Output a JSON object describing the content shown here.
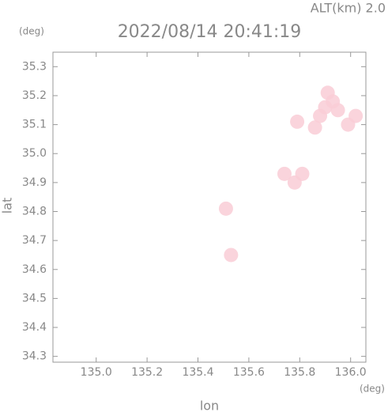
{
  "chart_data": {
    "type": "scatter",
    "title": "2022/08/14 20:41:19",
    "subtitle": "ALT(km) 2.0",
    "y_unit": "(deg)",
    "x_unit": "(deg)",
    "x_label": "lon",
    "y_label": "lat",
    "xlim": [
      134.83,
      136.06
    ],
    "ylim": [
      34.28,
      35.35
    ],
    "xticks": [
      {
        "value": 135.0,
        "label": "135.0"
      },
      135.2,
      135.4,
      135.6,
      135.8,
      {
        "value": 136.0,
        "label": "136.0"
      }
    ],
    "yticks": [
      34.3,
      34.4,
      34.5,
      34.6,
      34.7,
      34.8,
      34.9,
      {
        "value": 35.0,
        "label": "35.0"
      },
      35.1,
      35.2,
      35.3
    ],
    "color": "#f9cdd6",
    "x": [
      135.91,
      135.95,
      135.88,
      136.02,
      135.86,
      135.93,
      135.99,
      135.9,
      135.79,
      135.74,
      135.78,
      135.81,
      135.51,
      135.53
    ],
    "values": [
      35.21,
      35.15,
      35.13,
      35.13,
      35.09,
      35.18,
      35.1,
      35.16,
      35.11,
      34.93,
      34.9,
      34.93,
      34.81,
      34.65
    ]
  }
}
